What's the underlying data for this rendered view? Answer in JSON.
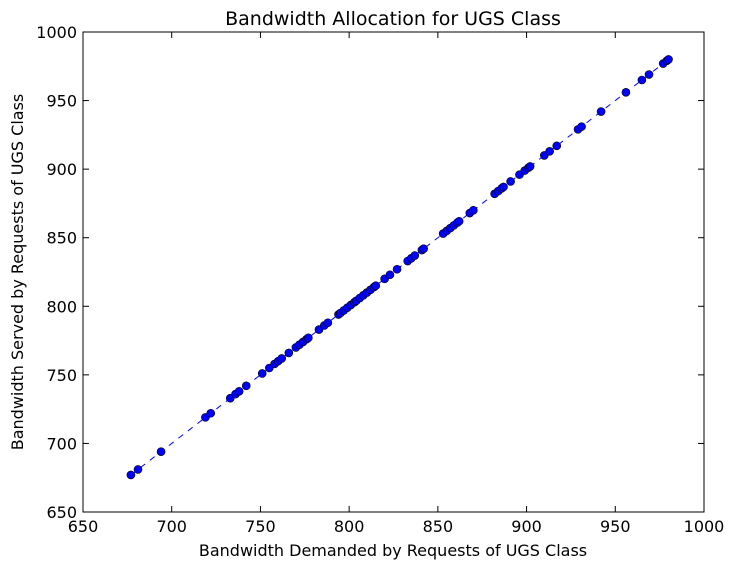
{
  "chart_data": {
    "type": "scatter",
    "title": "Bandwidth Allocation for UGS Class",
    "xlabel": "Bandwidth Demanded by Requests of UGS Class",
    "ylabel": "Bandwidth Served by Requests of UGS Class",
    "xlim": [
      650,
      1000
    ],
    "ylim": [
      650,
      1000
    ],
    "xticks": [
      "650",
      "700",
      "750",
      "800",
      "850",
      "900",
      "950",
      "1000"
    ],
    "yticks": [
      "650",
      "700",
      "750",
      "800",
      "850",
      "900",
      "950",
      "1000"
    ],
    "grid": false,
    "marker_color": "#0000ff",
    "marker_edge_color": "#000000",
    "line_color": "#0000ff",
    "line_style": "dashed",
    "series": [
      {
        "values": [
          677,
          681,
          694,
          719,
          722,
          733,
          736,
          738,
          742,
          751,
          755,
          758,
          760,
          762,
          766,
          770,
          772,
          774,
          776,
          777,
          783,
          786,
          788,
          794,
          795,
          797,
          799,
          801,
          803,
          804,
          806,
          808,
          810,
          812,
          814,
          815,
          820,
          823,
          827,
          833,
          835,
          837,
          841,
          842,
          853,
          855,
          857,
          859,
          861,
          862,
          868,
          870,
          882,
          884,
          886,
          887,
          891,
          896,
          899,
          901,
          902,
          910,
          913,
          917,
          929,
          931,
          942,
          956,
          965,
          969,
          977,
          979,
          980
        ]
      }
    ]
  }
}
